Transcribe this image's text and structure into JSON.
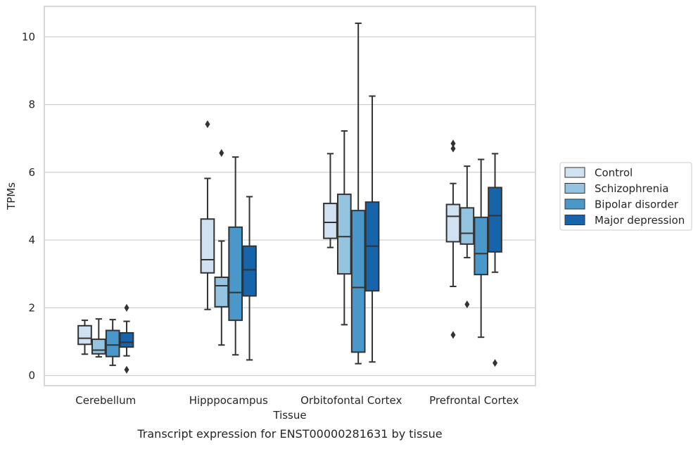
{
  "chart_data": {
    "type": "boxplot",
    "xlabel": "Tissue",
    "ylabel": "TPMs",
    "caption": "Transcript expression for ENST00000281631 by tissue",
    "categories": [
      "Cerebellum",
      "Hipppocampus",
      "Orbitofontal Cortex",
      "Prefrontal Cortex"
    ],
    "ylim": [
      -0.3,
      10.9
    ],
    "yticks": [
      0,
      2,
      4,
      6,
      8,
      10
    ],
    "grid": "horizontal",
    "legend_position": "right",
    "colors": {
      "Control": "#d0e1f2",
      "Schizophrenia": "#94c4df",
      "Bipolar disorder": "#4a98c9",
      "Major depression": "#1764ab",
      "edge": "#333333",
      "grid": "#cccccc"
    },
    "series": [
      {
        "name": "Control",
        "boxes": [
          {
            "whislo": 0.63,
            "q1": 0.92,
            "med": 1.1,
            "q3": 1.47,
            "whishi": 1.63,
            "fliers": []
          },
          {
            "whislo": 1.95,
            "q1": 3.03,
            "med": 3.42,
            "q3": 4.62,
            "whishi": 5.82,
            "fliers": [
              7.42
            ]
          },
          {
            "whislo": 3.78,
            "q1": 4.05,
            "med": 4.52,
            "q3": 5.08,
            "whishi": 6.55,
            "fliers": []
          },
          {
            "whislo": 2.63,
            "q1": 3.95,
            "med": 4.7,
            "q3": 5.05,
            "whishi": 5.67,
            "fliers": [
              6.85,
              6.7,
              1.2
            ]
          }
        ]
      },
      {
        "name": "Schizophrenia",
        "boxes": [
          {
            "whislo": 0.55,
            "q1": 0.64,
            "med": 0.75,
            "q3": 1.07,
            "whishi": 1.67,
            "fliers": []
          },
          {
            "whislo": 0.9,
            "q1": 2.03,
            "med": 2.65,
            "q3": 2.9,
            "whishi": 3.97,
            "fliers": [
              6.57
            ]
          },
          {
            "whislo": 1.5,
            "q1": 3.0,
            "med": 4.1,
            "q3": 5.35,
            "whishi": 7.22,
            "fliers": []
          },
          {
            "whislo": 3.48,
            "q1": 3.88,
            "med": 4.2,
            "q3": 4.95,
            "whishi": 6.18,
            "fliers": [
              2.1
            ]
          }
        ]
      },
      {
        "name": "Bipolar disorder",
        "boxes": [
          {
            "whislo": 0.3,
            "q1": 0.56,
            "med": 0.9,
            "q3": 1.33,
            "whishi": 1.65,
            "fliers": []
          },
          {
            "whislo": 0.61,
            "q1": 1.63,
            "med": 2.45,
            "q3": 4.38,
            "whishi": 6.45,
            "fliers": []
          },
          {
            "whislo": 0.35,
            "q1": 0.69,
            "med": 2.6,
            "q3": 4.87,
            "whishi": 10.4,
            "fliers": []
          },
          {
            "whislo": 1.13,
            "q1": 2.98,
            "med": 3.6,
            "q3": 4.67,
            "whishi": 6.38,
            "fliers": []
          }
        ]
      },
      {
        "name": "Major depression",
        "boxes": [
          {
            "whislo": 0.58,
            "q1": 0.84,
            "med": 0.98,
            "q3": 1.26,
            "whishi": 1.6,
            "fliers": [
              2.0,
              0.17
            ]
          },
          {
            "whislo": 0.46,
            "q1": 2.35,
            "med": 3.12,
            "q3": 3.82,
            "whishi": 5.28,
            "fliers": []
          },
          {
            "whislo": 0.4,
            "q1": 2.5,
            "med": 3.82,
            "q3": 5.12,
            "whishi": 8.25,
            "fliers": []
          },
          {
            "whislo": 3.05,
            "q1": 3.65,
            "med": 4.72,
            "q3": 5.55,
            "whishi": 6.55,
            "fliers": [
              0.37
            ]
          }
        ]
      }
    ]
  }
}
